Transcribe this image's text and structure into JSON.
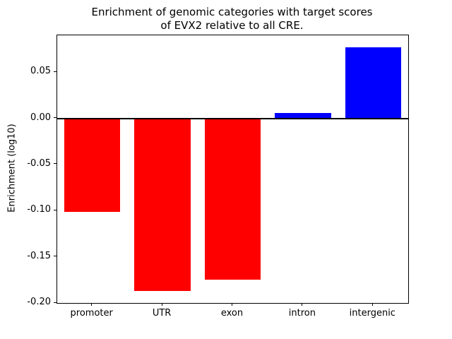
{
  "chart_data": {
    "type": "bar",
    "title_lines": [
      "Enrichment of genomic categories with target scores",
      "of EVX2 relative to all CRE."
    ],
    "xlabel": "",
    "ylabel": "Enrichment (log10)",
    "categories": [
      "promoter",
      "UTR",
      "exon",
      "intron",
      "intergenic"
    ],
    "values": [
      -0.101,
      -0.187,
      -0.175,
      0.006,
      0.077
    ],
    "bar_colors": [
      "#ff0000",
      "#ff0000",
      "#ff0000",
      "#0000ff",
      "#0000ff"
    ],
    "negative_color": "#ff0000",
    "positive_color": "#0000ff",
    "ylim": [
      -0.2,
      0.09
    ],
    "yticks": [
      0.05,
      0.0,
      -0.05,
      -0.1,
      -0.15,
      -0.2
    ],
    "ytick_labels": [
      "0.05",
      "0.00",
      "-0.05",
      "-0.10",
      "-0.15",
      "-0.20"
    ],
    "zero_line": true,
    "grid": false,
    "legend": false,
    "bar_width_fraction": 0.8
  }
}
